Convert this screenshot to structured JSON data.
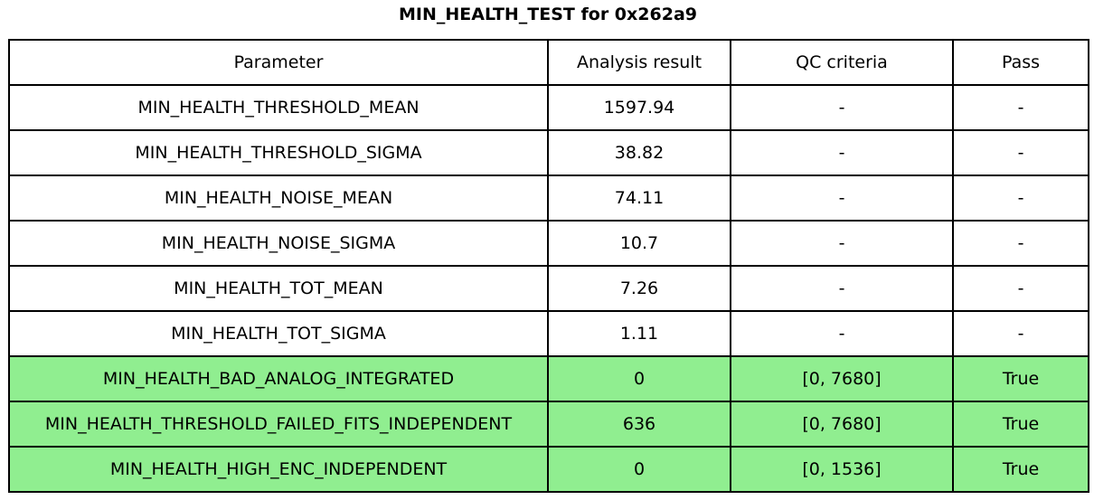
{
  "title": "MIN_HEALTH_TEST for 0x262a9",
  "colors": {
    "highlight_green": "#90EE90",
    "border": "#000000",
    "background": "#FFFFFF",
    "text": "#000000"
  },
  "chart_data": {
    "type": "table",
    "title": "MIN_HEALTH_TEST for 0x262a9",
    "columns": [
      "Parameter",
      "Analysis result",
      "QC criteria",
      "Pass"
    ],
    "rows": [
      {
        "cells": [
          "MIN_HEALTH_THRESHOLD_MEAN",
          "1597.94",
          "-",
          "-"
        ],
        "highlighted": false
      },
      {
        "cells": [
          "MIN_HEALTH_THRESHOLD_SIGMA",
          "38.82",
          "-",
          "-"
        ],
        "highlighted": false
      },
      {
        "cells": [
          "MIN_HEALTH_NOISE_MEAN",
          "74.11",
          "-",
          "-"
        ],
        "highlighted": false
      },
      {
        "cells": [
          "MIN_HEALTH_NOISE_SIGMA",
          "10.7",
          "-",
          "-"
        ],
        "highlighted": false
      },
      {
        "cells": [
          "MIN_HEALTH_TOT_MEAN",
          "7.26",
          "-",
          "-"
        ],
        "highlighted": false
      },
      {
        "cells": [
          "MIN_HEALTH_TOT_SIGMA",
          "1.11",
          "-",
          "-"
        ],
        "highlighted": false
      },
      {
        "cells": [
          "MIN_HEALTH_BAD_ANALOG_INTEGRATED",
          "0",
          "[0, 7680]",
          "True"
        ],
        "highlighted": true
      },
      {
        "cells": [
          "MIN_HEALTH_THRESHOLD_FAILED_FITS_INDEPENDENT",
          "636",
          "[0, 7680]",
          "True"
        ],
        "highlighted": true
      },
      {
        "cells": [
          "MIN_HEALTH_HIGH_ENC_INDEPENDENT",
          "0",
          "[0, 1536]",
          "True"
        ],
        "highlighted": true
      }
    ]
  }
}
